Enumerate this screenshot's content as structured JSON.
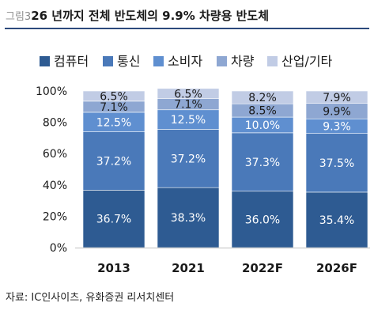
{
  "header": {
    "figure_number": "그림3",
    "title": "26 년까지 전체 반도체의 9.9% 차량용 반도체"
  },
  "source": "자료: IC인사이츠, 유화증권 리서치센터",
  "chart_data": {
    "type": "bar",
    "stacked": true,
    "percent_stacked": true,
    "categories": [
      "2013",
      "2021",
      "2022F",
      "2026F"
    ],
    "series": [
      {
        "name": "컴퓨터",
        "color": "#2e5b92",
        "values": [
          36.7,
          38.3,
          36.0,
          35.4
        ],
        "labels": [
          "36.7%",
          "38.3%",
          "36.0%",
          "35.4%"
        ]
      },
      {
        "name": "통신",
        "color": "#4a79b9",
        "values": [
          37.2,
          37.2,
          37.3,
          37.5
        ],
        "labels": [
          "37.2%",
          "37.2%",
          "37.3%",
          "37.5%"
        ]
      },
      {
        "name": "소비자",
        "color": "#5f8fd0",
        "values": [
          12.5,
          12.5,
          10.0,
          9.3
        ],
        "labels": [
          "12.5%",
          "12.5%",
          "10.0%",
          "9.3%"
        ]
      },
      {
        "name": "차량",
        "color": "#8ea7d2",
        "values": [
          7.1,
          7.1,
          8.5,
          9.9
        ],
        "labels": [
          "7.1%",
          "7.1%",
          "8.5%",
          "9.9%"
        ]
      },
      {
        "name": "산업/기타",
        "color": "#c1cce5",
        "values": [
          6.5,
          6.5,
          8.2,
          7.9
        ],
        "labels": [
          "6.5%",
          "6.5%",
          "8.2%",
          "7.9%"
        ]
      }
    ],
    "ylim": [
      0,
      100
    ],
    "yticks": [
      0,
      20,
      40,
      60,
      80,
      100
    ],
    "ytick_labels": [
      "0%",
      "20%",
      "40%",
      "60%",
      "80%",
      "100%"
    ],
    "legend_position": "top",
    "label_colors": {
      "light_segment_text": "#1a1a1a",
      "dark_segment_text": "#ffffff"
    },
    "grid": false
  }
}
